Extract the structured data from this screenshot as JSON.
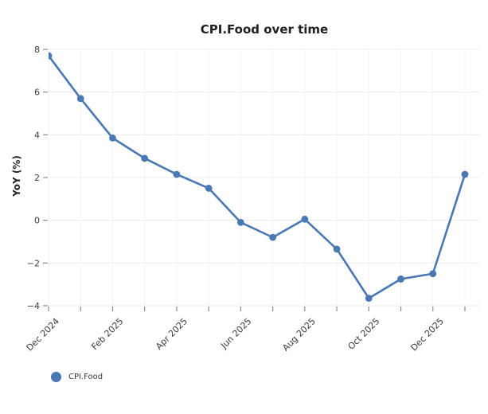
{
  "colors": {
    "line": "#4a78b2",
    "marker": "#4a78b2",
    "grid_h": "#ececec",
    "grid_v": "#f3f3f3",
    "tick": "#8c8c8c",
    "tick_text": "#3b3b3b",
    "title_text": "#1f1f1f"
  },
  "legend": {
    "label": "CPI.Food"
  },
  "chart_data": {
    "type": "line",
    "title": "CPI.Food over time",
    "xlabel": "",
    "ylabel": "YoY (%)",
    "x": [
      "Dec 2024",
      "Jan 2025",
      "Feb 2025",
      "Mar 2025",
      "Apr 2025",
      "May 2025",
      "Jun 2025",
      "Jul 2025",
      "Aug 2025",
      "Sep 2025",
      "Oct 2025",
      "Nov 2025",
      "Dec 2025",
      "Jan 2026"
    ],
    "series": [
      {
        "name": "CPI.Food",
        "values": [
          7.7,
          5.7,
          3.85,
          2.9,
          2.15,
          1.5,
          -0.1,
          -0.8,
          0.05,
          -1.35,
          -3.65,
          -2.75,
          -2.5,
          2.15
        ]
      }
    ],
    "x_tick_labels": [
      "Dec 2024",
      "Feb 2025",
      "Apr 2025",
      "Jun 2025",
      "Aug 2025",
      "Oct 2025",
      "Dec 2025"
    ],
    "x_tick_label_every": 2,
    "y_ticks": [
      8,
      6,
      4,
      2,
      0,
      -2,
      -4
    ],
    "ylim": [
      -4.3,
      8.2
    ],
    "grid": true,
    "legend_position": "bottom-left"
  }
}
